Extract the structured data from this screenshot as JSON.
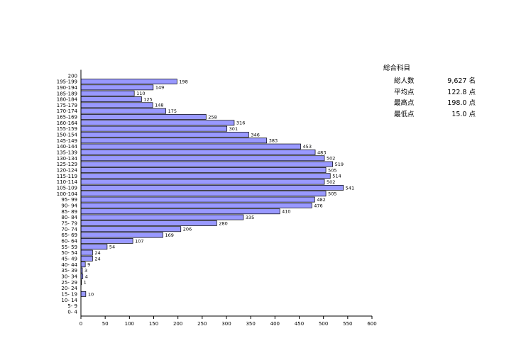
{
  "colors": {
    "bar_fill": "#9999ff",
    "bar_stroke": "#000000",
    "axis": "#000000"
  },
  "summary": {
    "title": "総合科目",
    "rows": [
      {
        "label": "総人数",
        "value": "9,627 名"
      },
      {
        "label": "平均点",
        "value": "122.8 点"
      },
      {
        "label": "最高点",
        "value": "198.0 点"
      },
      {
        "label": "最低点",
        "value": "15.0 点"
      }
    ]
  },
  "chart_data": {
    "type": "bar",
    "orientation": "horizontal",
    "title": "",
    "xlabel": "",
    "ylabel": "",
    "xlim": [
      0,
      600
    ],
    "xticks": [
      0,
      50,
      100,
      150,
      200,
      250,
      300,
      350,
      400,
      450,
      500,
      550,
      600
    ],
    "grid": false,
    "categories": [
      "200",
      "195-199",
      "190-194",
      "185-189",
      "180-184",
      "175-179",
      "170-174",
      "165-169",
      "160-164",
      "155-159",
      "150-154",
      "145-149",
      "140-144",
      "135-139",
      "130-134",
      "125-129",
      "120-124",
      "115-119",
      "110-114",
      "105-109",
      "100-104",
      "95- 99",
      "90- 94",
      "85- 89",
      "80- 84",
      "75- 79",
      "70- 74",
      "65- 69",
      "60- 64",
      "55- 59",
      "50- 54",
      "45- 49",
      "40- 44",
      "35- 39",
      "30- 34",
      "25- 29",
      "20- 24",
      "15- 19",
      "10- 14",
      "5- 9",
      "0- 4"
    ],
    "values": [
      null,
      198,
      149,
      110,
      125,
      148,
      175,
      258,
      316,
      301,
      346,
      383,
      453,
      483,
      502,
      519,
      505,
      514,
      502,
      541,
      505,
      482,
      476,
      410,
      335,
      280,
      206,
      169,
      107,
      54,
      24,
      24,
      9,
      3,
      4,
      1,
      null,
      10,
      null,
      null,
      null
    ]
  }
}
